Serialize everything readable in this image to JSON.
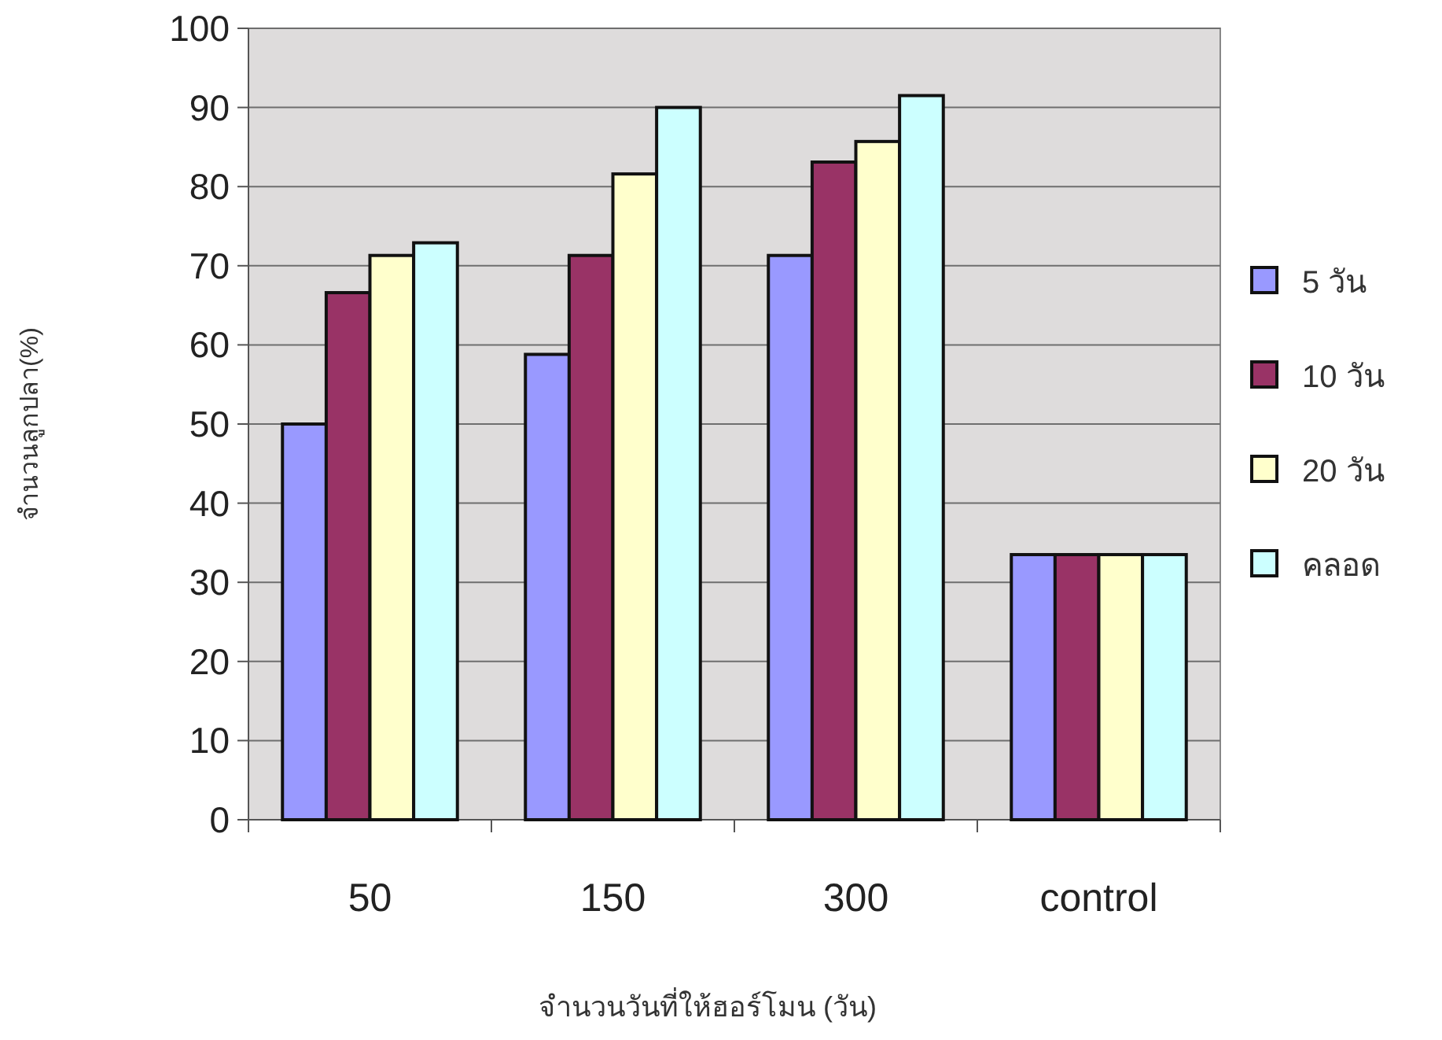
{
  "chart_data": {
    "type": "bar",
    "xlabel": "จำนวนวันที่ให้ฮอร์โมน (วัน)",
    "ylabel": "จำนวนลูกปลา(%)",
    "categories": [
      "50",
      "150",
      "300",
      "control"
    ],
    "series": [
      {
        "name": "5 วัน",
        "color": "#9999ff",
        "values": [
          50,
          58.8,
          71.3,
          33.5
        ]
      },
      {
        "name": "10 วัน",
        "color": "#993366",
        "values": [
          66.6,
          71.3,
          83.1,
          33.5
        ]
      },
      {
        "name": "20 วัน",
        "color": "#ffffcc",
        "values": [
          71.3,
          81.6,
          85.7,
          33.5
        ]
      },
      {
        "name": "คลอด",
        "color": "#ccffff",
        "values": [
          72.9,
          90,
          91.5,
          33.5
        ]
      }
    ],
    "ylim": [
      0,
      100
    ],
    "yticks": [
      0,
      10,
      20,
      30,
      40,
      50,
      60,
      70,
      80,
      90,
      100
    ],
    "grid": "y",
    "legend": "right"
  }
}
